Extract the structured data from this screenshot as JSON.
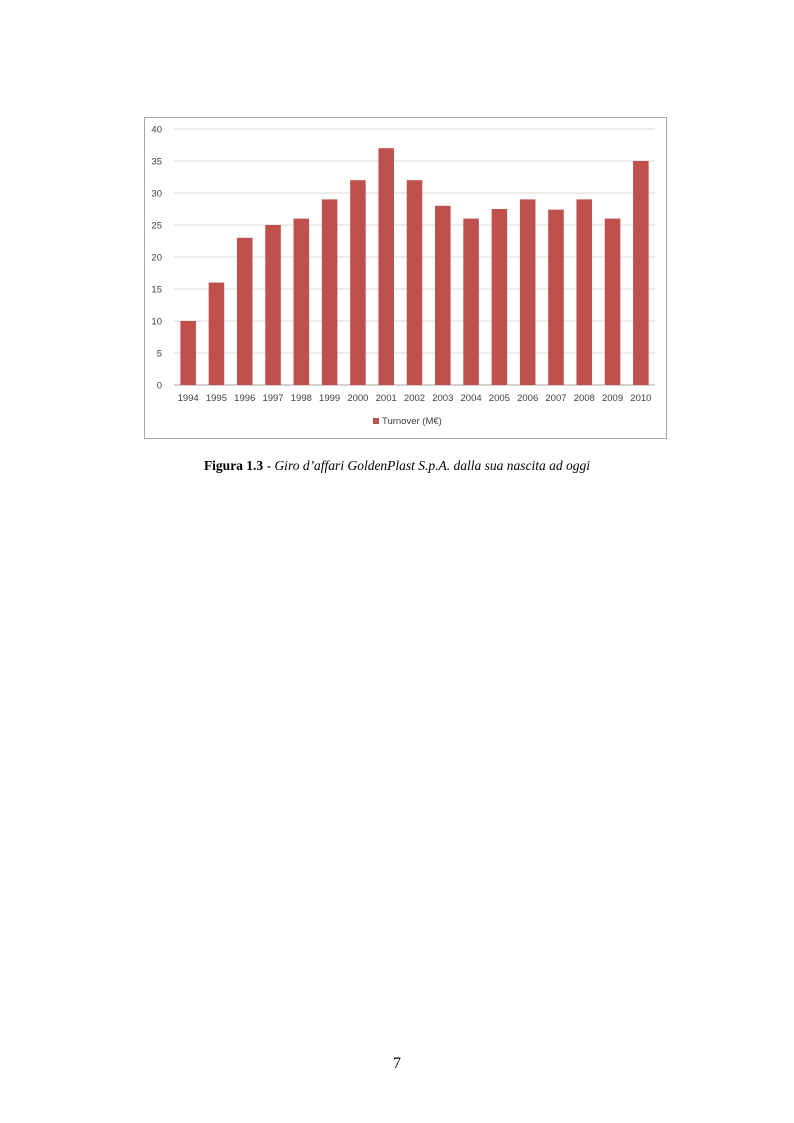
{
  "chart_data": {
    "type": "bar",
    "categories": [
      "1994",
      "1995",
      "1996",
      "1997",
      "1998",
      "1999",
      "2000",
      "2001",
      "2002",
      "2003",
      "2004",
      "2005",
      "2006",
      "2007",
      "2008",
      "2009",
      "2010"
    ],
    "series": [
      {
        "name": "Turnover (M€)",
        "values": [
          10,
          16,
          23,
          25,
          26,
          29,
          32,
          37,
          32,
          28,
          26,
          27.5,
          29,
          27.4,
          29,
          26,
          35
        ]
      }
    ],
    "ylim": [
      0,
      40
    ],
    "yticks": [
      0,
      5,
      10,
      15,
      20,
      25,
      30,
      35,
      40
    ],
    "grid": true,
    "legend_position": "bottom",
    "bar_color": "#c0504d",
    "gridline_color": "#d9d9d9"
  },
  "caption": {
    "label": "Figura 1.3",
    "separator": " - ",
    "text": "Giro d’affari GoldenPlast S.p.A. dalla sua nascita ad oggi"
  },
  "page_number": "7"
}
